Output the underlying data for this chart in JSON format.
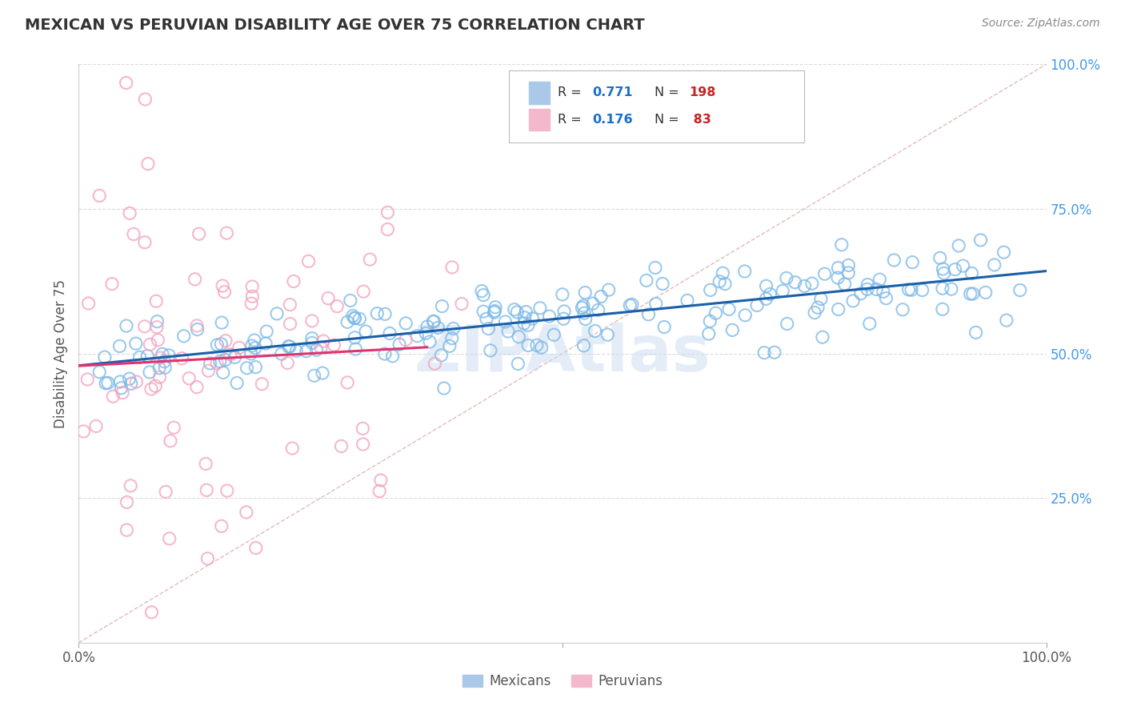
{
  "title": "MEXICAN VS PERUVIAN DISABILITY AGE OVER 75 CORRELATION CHART",
  "source": "Source: ZipAtlas.com",
  "ylabel": "Disability Age Over 75",
  "mexican_color": "#7ab8e8",
  "peruvian_color": "#f4a0bc",
  "mexican_line_color": "#1a5fa8",
  "peruvian_line_color": "#e0336e",
  "mexican_R": 0.771,
  "mexican_N": 198,
  "peruvian_R": 0.176,
  "peruvian_N": 83,
  "watermark": "ZIPAtlas",
  "xlim": [
    0.0,
    1.0
  ],
  "ylim": [
    0.0,
    1.0
  ],
  "right_ytick_labels": [
    "25.0%",
    "50.0%",
    "75.0%",
    "100.0%"
  ],
  "right_ytick_values": [
    0.25,
    0.5,
    0.75,
    1.0
  ],
  "background_color": "#ffffff",
  "grid_color": "#cccccc",
  "legend_blue_color": "#aac8e8",
  "legend_pink_color": "#f4b8cc",
  "legend_text_color": "#333333",
  "legend_R_color": "#1a6fcc",
  "legend_N_color": "#cc2222"
}
